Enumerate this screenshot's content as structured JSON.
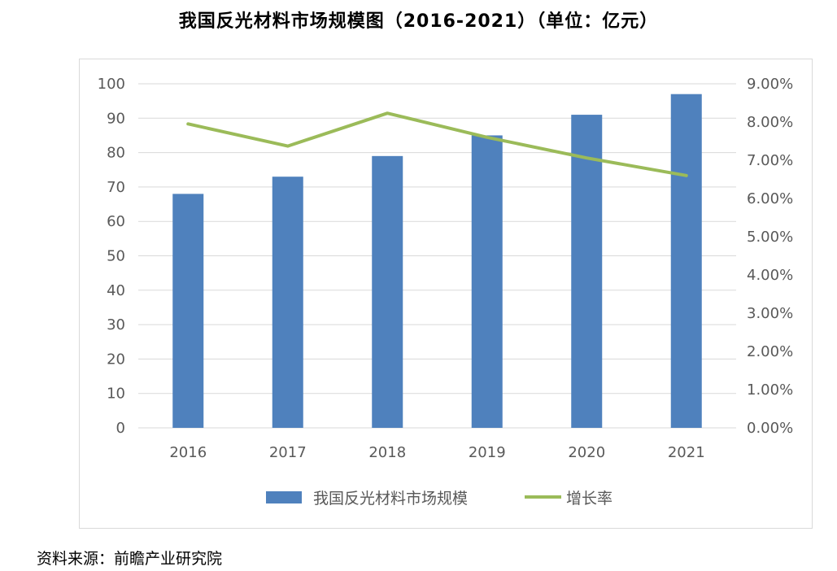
{
  "title": "我国反光材料市场规模图（2016-2021）（单位：亿元）",
  "source": "资料来源：前瞻产业研究院",
  "colors": {
    "bar": "#4f81bd",
    "line": "#9bbb59",
    "grid": "#d9d9d9",
    "axis_text": "#595959"
  },
  "chart_data": {
    "type": "bar+line",
    "categories": [
      "2016",
      "2017",
      "2018",
      "2019",
      "2020",
      "2021"
    ],
    "series": [
      {
        "name": "我国反光材料市场规模",
        "type": "bar",
        "axis": "left",
        "values": [
          68,
          73,
          79,
          85,
          91,
          97
        ]
      },
      {
        "name": "增长率",
        "type": "line",
        "axis": "right",
        "values": [
          0.0795,
          0.0737,
          0.0823,
          0.076,
          0.0706,
          0.066
        ]
      }
    ],
    "left_axis": {
      "ylim": [
        0,
        100
      ],
      "ticks": [
        "0",
        "10",
        "20",
        "30",
        "40",
        "50",
        "60",
        "70",
        "80",
        "90",
        "100"
      ]
    },
    "right_axis": {
      "ylim": [
        0,
        0.09
      ],
      "ticks": [
        "0.00%",
        "1.00%",
        "2.00%",
        "3.00%",
        "4.00%",
        "5.00%",
        "6.00%",
        "7.00%",
        "8.00%",
        "9.00%"
      ]
    },
    "grid": true,
    "legend_position": "bottom"
  }
}
